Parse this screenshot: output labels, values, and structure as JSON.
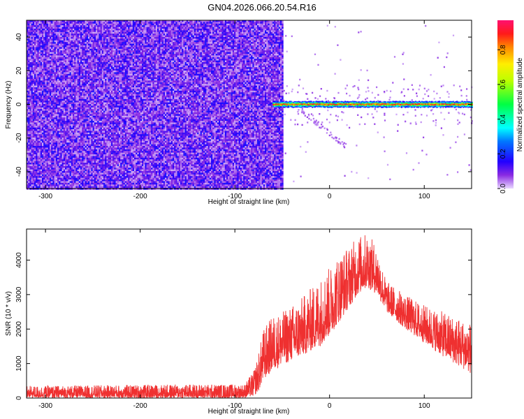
{
  "title": "GN04.2026.066.20.54.R16",
  "chart_data": [
    {
      "type": "heatmap",
      "xlabel": "Height of straight line (km)",
      "ylabel": "Frequency (Hz)",
      "xlim": [
        -320,
        150
      ],
      "ylim": [
        -50,
        50
      ],
      "xticks": [
        -300,
        -200,
        -100,
        0,
        100
      ],
      "yticks": [
        -40,
        -20,
        0,
        20,
        40
      ],
      "colorbar": {
        "label": "Normalized spectral amplitude",
        "range": [
          0.0,
          0.97
        ],
        "ticks": [
          0.0,
          0.2,
          0.4,
          0.6,
          0.8
        ],
        "colormap": "rainbow"
      },
      "regions": [
        {
          "x_range": [
            -320,
            -50
          ],
          "freq_range": [
            -50,
            50
          ],
          "amplitude_range": [
            0.0,
            0.2
          ]
        },
        {
          "x_range": [
            -60,
            150
          ],
          "freq_range": [
            -2,
            2
          ],
          "amplitude_range": [
            0.4,
            0.9
          ]
        }
      ]
    },
    {
      "type": "line",
      "xlabel": "Height of straight line (km)",
      "ylabel": "SNR (10 * v/v)",
      "xlim": [
        -320,
        150
      ],
      "ylim": [
        0,
        4900
      ],
      "xticks": [
        -300,
        -200,
        -100,
        0,
        100
      ],
      "yticks": [
        0,
        1000,
        2000,
        3000,
        4000
      ],
      "color": "#ef3030",
      "envelope": {
        "x": [
          -320,
          -150,
          -90,
          -80,
          -75,
          -70,
          -60,
          -50,
          -30,
          -10,
          0,
          10,
          20,
          30,
          40,
          50,
          60,
          80,
          100,
          120,
          150
        ],
        "low": [
          0,
          0,
          0,
          50,
          200,
          500,
          800,
          950,
          1200,
          1500,
          1800,
          2200,
          2600,
          3000,
          3200,
          3000,
          2500,
          2000,
          1600,
          1200,
          700
        ],
        "high": [
          350,
          400,
          400,
          800,
          1300,
          2000,
          2400,
          2500,
          2900,
          3500,
          3800,
          4200,
          4400,
          4700,
          4800,
          4400,
          3400,
          3000,
          2700,
          2500,
          2200
        ]
      }
    }
  ]
}
